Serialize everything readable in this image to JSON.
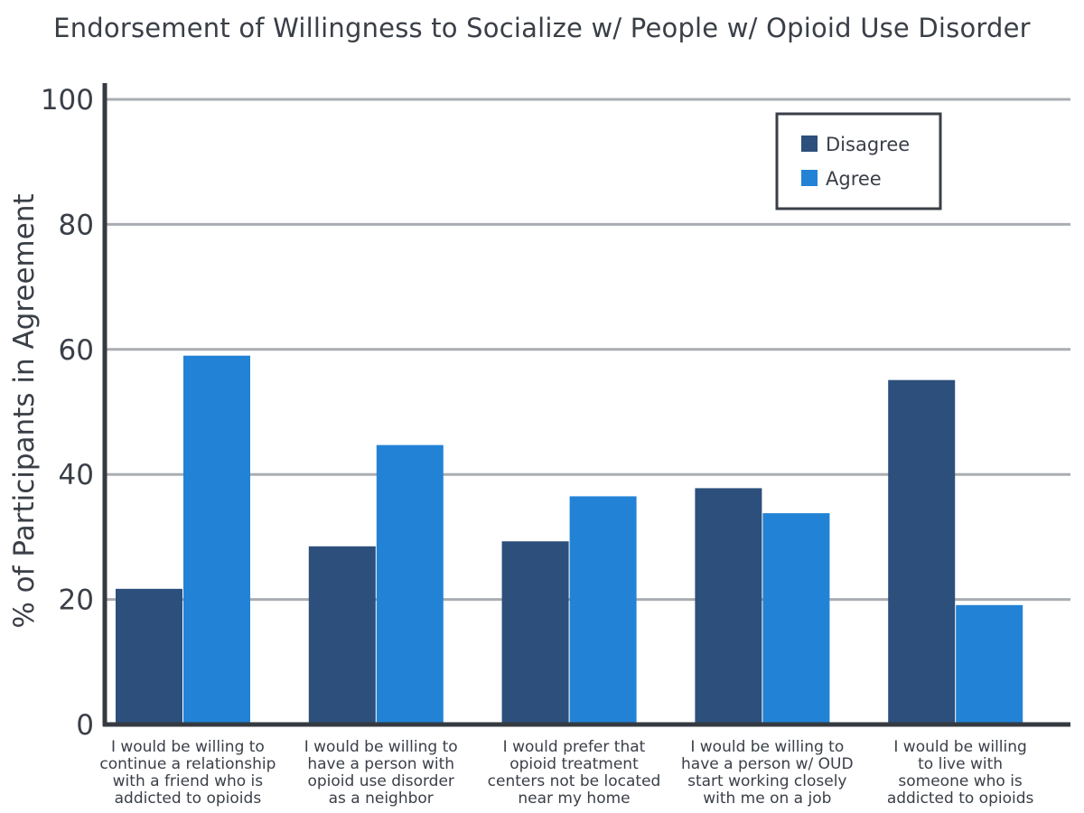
{
  "chart_data": {
    "type": "bar",
    "title": "Endorsement of Willingness to Socialize w/ People w/ Opioid Use Disorder",
    "xlabel": "",
    "ylabel": "% of Participants in Agreement",
    "ylim": [
      0,
      100
    ],
    "yticks": [
      "0",
      "20",
      "40",
      "60",
      "80",
      "100"
    ],
    "grid": true,
    "legend_position": "top-right",
    "categories": [
      [
        "I would be willing to",
        "continue a relationship",
        "with a friend who is",
        "addicted to opioids"
      ],
      [
        "I would be willing to",
        "have a person with",
        "opioid use disorder",
        "as a neighbor"
      ],
      [
        "I would prefer that",
        "opioid treatment",
        "centers not be located",
        "near my home"
      ],
      [
        "I would be willing to",
        "have a person w/ OUD",
        "start working closely",
        "with me on a job"
      ],
      [
        "I would be willing",
        "to live with",
        "someone who is",
        "addicted to opioids"
      ]
    ],
    "series": [
      {
        "name": "Disagree",
        "color": "#2c4f7c",
        "values": [
          21.7,
          28.5,
          29.3,
          37.8,
          55.1
        ]
      },
      {
        "name": "Agree",
        "color": "#2283d6",
        "values": [
          59.0,
          44.7,
          36.5,
          33.8,
          19.1
        ]
      }
    ]
  }
}
